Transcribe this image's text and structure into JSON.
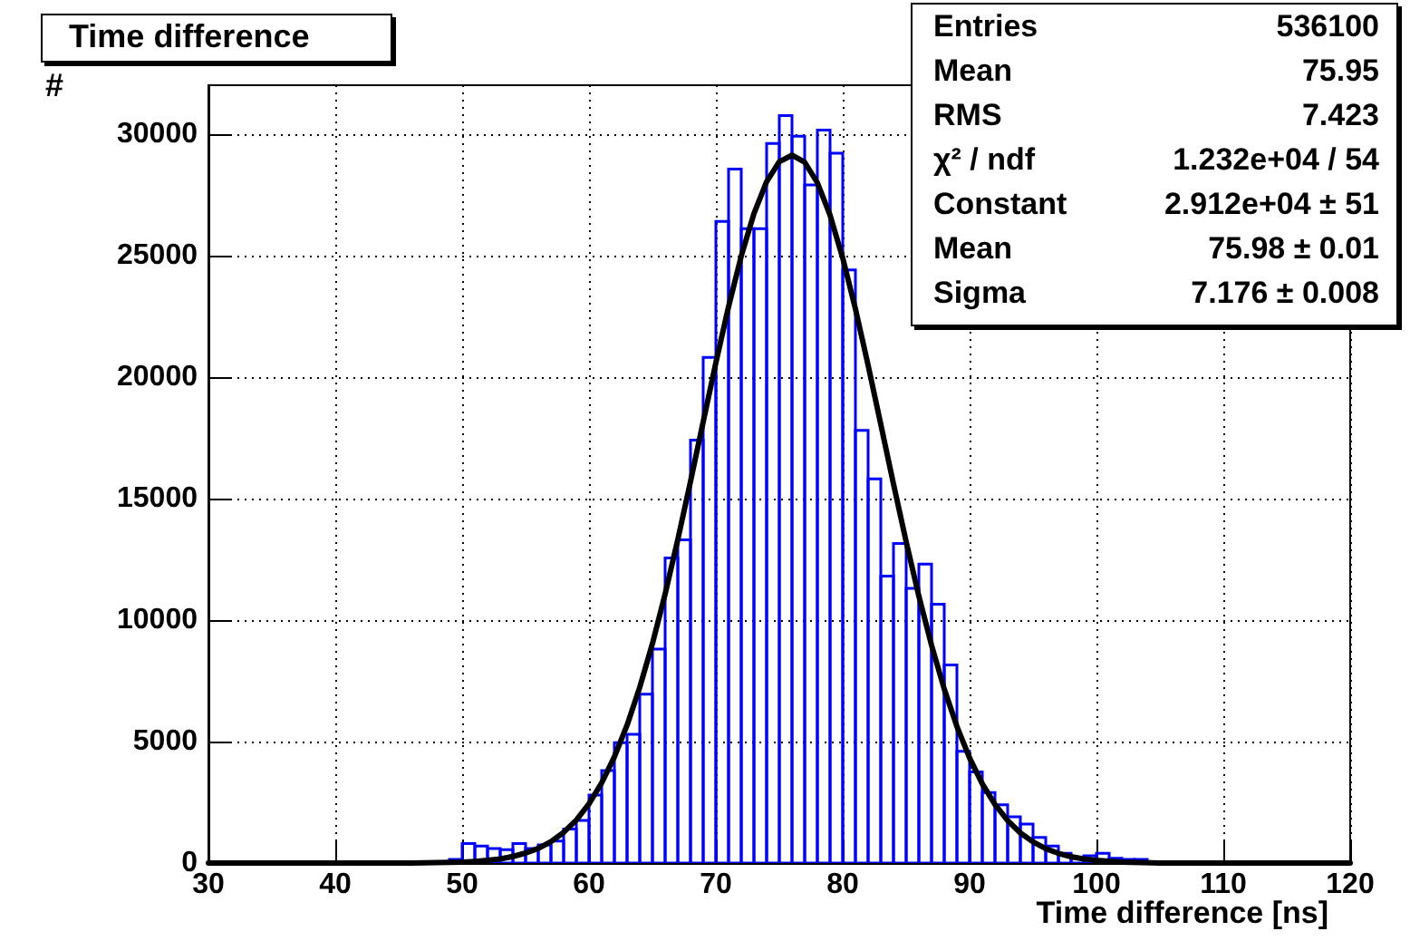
{
  "chart_data": {
    "type": "histogram",
    "title": "Time difference",
    "xlabel": "Time difference [ns]",
    "ylabel": "#",
    "bins": [
      30,
      31,
      32,
      33,
      34,
      35,
      36,
      37,
      38,
      39,
      40,
      41,
      42,
      43,
      44,
      45,
      46,
      47,
      48,
      49,
      50,
      51,
      52,
      53,
      54,
      55,
      56,
      57,
      58,
      59,
      60,
      61,
      62,
      63,
      64,
      65,
      66,
      67,
      68,
      69,
      70,
      71,
      72,
      73,
      74,
      75,
      76,
      77,
      78,
      79,
      80,
      81,
      82,
      83,
      84,
      85,
      86,
      87,
      88,
      89,
      90,
      91,
      92,
      93,
      94,
      95,
      96,
      97,
      98,
      99,
      100,
      101,
      102,
      103,
      104,
      105,
      106,
      107,
      108,
      109,
      110,
      111,
      112,
      113,
      114,
      115,
      116,
      117,
      118,
      119,
      120
    ],
    "values": [
      0,
      0,
      0,
      0,
      0,
      0,
      0,
      0,
      0,
      0,
      0,
      0,
      0,
      0,
      0,
      0,
      0,
      0,
      0,
      150,
      800,
      700,
      600,
      550,
      800,
      600,
      750,
      900,
      1400,
      1750,
      2800,
      3800,
      4950,
      5300,
      6950,
      8800,
      12550,
      13300,
      17400,
      20800,
      26400,
      28550,
      26100,
      26100,
      29600,
      30750,
      29900,
      27900,
      30150,
      29200,
      24400,
      17800,
      15800,
      11800,
      13150,
      11300,
      12300,
      10650,
      8150,
      4600,
      3750,
      2900,
      2400,
      1900,
      1600,
      1050,
      700,
      400,
      200,
      300,
      400,
      200,
      150,
      150,
      50,
      0,
      0,
      0,
      0,
      0,
      0,
      0,
      0,
      0,
      0,
      0,
      0,
      0,
      0,
      0
    ],
    "color": "#0000ff",
    "series": [
      {
        "type": "line",
        "color": "#000000",
        "x": [
          30,
          40,
          46,
          48,
          50,
          51,
          52,
          53,
          54,
          55,
          56,
          57,
          58,
          59,
          60,
          61,
          62,
          63,
          64,
          65,
          66,
          67,
          68,
          69,
          70,
          71,
          72,
          73,
          74,
          75,
          76,
          77,
          78,
          79,
          80,
          81,
          82,
          83,
          84,
          85,
          86,
          87,
          88,
          89,
          90,
          91,
          92,
          93,
          94,
          95,
          96,
          97,
          98,
          99,
          100,
          102,
          105,
          110,
          120
        ],
        "values": [
          0,
          0,
          0,
          20,
          40,
          70,
          110,
          170,
          270,
          410,
          600,
          880,
          1260,
          1770,
          2440,
          3300,
          4370,
          5670,
          7230,
          9030,
          11070,
          13310,
          15700,
          18150,
          20580,
          22890,
          24970,
          26720,
          28030,
          28850,
          29120,
          28830,
          27990,
          26650,
          24890,
          22800,
          20480,
          18050,
          15590,
          13220,
          10980,
          8960,
          7160,
          5620,
          4320,
          3260,
          2410,
          1750,
          1240,
          870,
          590,
          400,
          260,
          170,
          110,
          40,
          0,
          0,
          0
        ]
      }
    ],
    "xlim": [
      30,
      120
    ],
    "xticks": [
      30,
      40,
      50,
      60,
      70,
      80,
      90,
      100,
      110,
      120
    ],
    "ylim": [
      0,
      32000
    ],
    "yticks": [
      0,
      5000,
      10000,
      15000,
      20000,
      25000,
      30000
    ],
    "grid": true,
    "annotations": [
      "Entries",
      "536100",
      "Mean",
      "75.95",
      "RMS",
      "7.423",
      "χ² / ndf",
      "1.232e+04 / 54",
      "Constant",
      "2.912e+04 ± 51",
      "Mean",
      "75.98 ± 0.01",
      "Sigma",
      "7.176 ± 0.008"
    ]
  }
}
